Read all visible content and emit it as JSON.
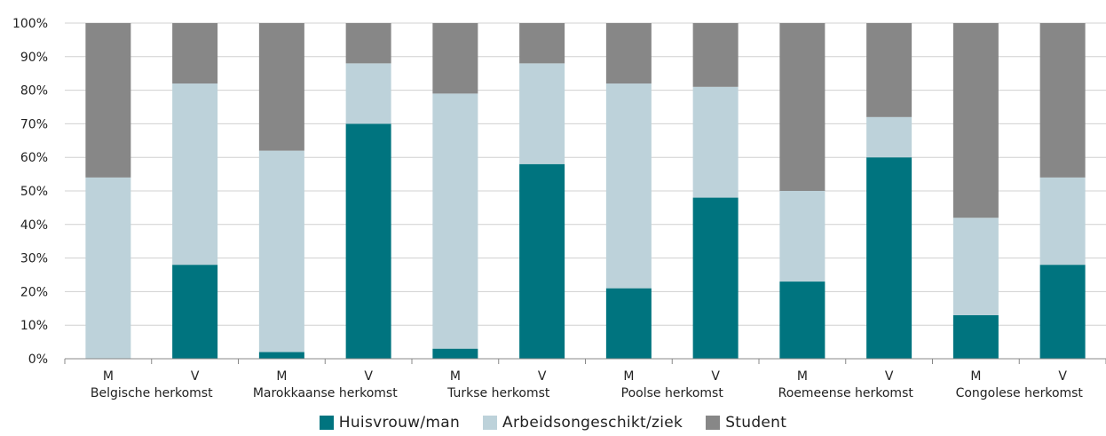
{
  "chart_data": {
    "type": "bar",
    "stacked": true,
    "categories": [
      "M",
      "V",
      "M",
      "V",
      "M",
      "V",
      "M",
      "V",
      "M",
      "V",
      "M",
      "V"
    ],
    "groups": [
      "Belgische herkomst",
      "Marokkaanse herkomst",
      "Turkse herkomst",
      "Poolse herkomst",
      "Roemeense herkomst",
      "Congolese herkomst"
    ],
    "series": [
      {
        "name": "Huisvrouw/man",
        "color": "#00747f",
        "values": [
          0,
          28,
          2,
          70,
          3,
          58,
          21,
          48,
          23,
          60,
          13,
          28
        ]
      },
      {
        "name": "Arbeidsongeschikt/ziek",
        "color": "#bdd2da",
        "values": [
          54,
          54,
          60,
          18,
          76,
          30,
          61,
          33,
          27,
          12,
          29,
          26
        ]
      },
      {
        "name": "Student",
        "color": "#878787",
        "values": [
          46,
          18,
          38,
          12,
          21,
          12,
          18,
          19,
          50,
          28,
          58,
          46
        ]
      }
    ],
    "yticks": [
      "0%",
      "10%",
      "20%",
      "30%",
      "40%",
      "50%",
      "60%",
      "70%",
      "80%",
      "90%",
      "100%"
    ],
    "ylim": [
      0,
      100
    ],
    "grid": "horizontal",
    "legend_position": "bottom"
  }
}
